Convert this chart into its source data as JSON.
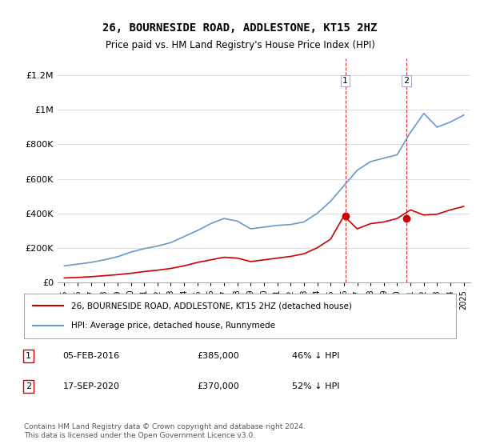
{
  "title": "26, BOURNESIDE ROAD, ADDLESTONE, KT15 2HZ",
  "subtitle": "Price paid vs. HM Land Registry's House Price Index (HPI)",
  "legend_label_red": "26, BOURNESIDE ROAD, ADDLESTONE, KT15 2HZ (detached house)",
  "legend_label_blue": "HPI: Average price, detached house, Runnymede",
  "annotation1_label": "1",
  "annotation1_date": "05-FEB-2016",
  "annotation1_price": "£385,000",
  "annotation1_hpi": "46% ↓ HPI",
  "annotation1_year": 2016.1,
  "annotation1_value_red": 385000,
  "annotation2_label": "2",
  "annotation2_date": "17-SEP-2020",
  "annotation2_price": "£370,000",
  "annotation2_hpi": "52% ↓ HPI",
  "annotation2_year": 2020.7,
  "annotation2_value_red": 370000,
  "footer": "Contains HM Land Registry data © Crown copyright and database right 2024.\nThis data is licensed under the Open Government Licence v3.0.",
  "red_color": "#cc0000",
  "blue_color": "#6699cc",
  "dashed_color": "#cc3333",
  "ylim": [
    0,
    1300000
  ],
  "yticks": [
    0,
    200000,
    400000,
    600000,
    800000,
    1000000,
    1200000
  ],
  "ytick_labels": [
    "£0",
    "£200K",
    "£400K",
    "£600K",
    "£800K",
    "£1M",
    "£1.2M"
  ],
  "hpi_years": [
    1995,
    1996,
    1997,
    1998,
    1999,
    2000,
    2001,
    2002,
    2003,
    2004,
    2005,
    2006,
    2007,
    2008,
    2009,
    2010,
    2011,
    2012,
    2013,
    2014,
    2015,
    2016,
    2017,
    2018,
    2019,
    2020,
    2021,
    2022,
    2023,
    2024,
    2025
  ],
  "hpi_values": [
    95000,
    105000,
    115000,
    130000,
    148000,
    175000,
    195000,
    210000,
    230000,
    265000,
    300000,
    340000,
    370000,
    355000,
    310000,
    320000,
    330000,
    335000,
    350000,
    400000,
    470000,
    560000,
    650000,
    700000,
    720000,
    740000,
    870000,
    980000,
    900000,
    930000,
    970000
  ],
  "red_years": [
    1995,
    1996,
    1997,
    1998,
    1999,
    2000,
    2001,
    2002,
    2003,
    2004,
    2005,
    2006,
    2007,
    2008,
    2009,
    2010,
    2011,
    2012,
    2013,
    2014,
    2015,
    2016,
    2017,
    2018,
    2019,
    2020,
    2021,
    2022,
    2023,
    2024,
    2025
  ],
  "red_values": [
    25000,
    28000,
    32000,
    38000,
    44000,
    52000,
    62000,
    70000,
    80000,
    95000,
    115000,
    130000,
    145000,
    140000,
    120000,
    130000,
    140000,
    150000,
    165000,
    200000,
    250000,
    385000,
    310000,
    340000,
    350000,
    370000,
    420000,
    390000,
    395000,
    420000,
    440000
  ]
}
